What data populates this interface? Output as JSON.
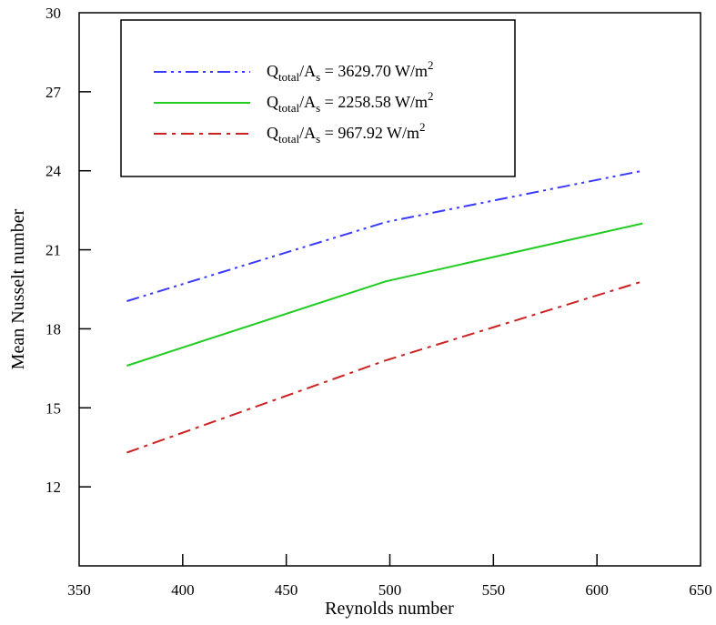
{
  "chart_data": {
    "type": "line",
    "xlabel": "Reynolds number",
    "ylabel": "Mean Nusselt number",
    "xlim": [
      350,
      650
    ],
    "ylim": [
      9,
      30
    ],
    "xticks": [
      350,
      400,
      450,
      500,
      550,
      600,
      650
    ],
    "yticks": [
      12,
      15,
      18,
      21,
      24,
      27,
      30
    ],
    "grid": false,
    "legend_position": "top-left",
    "series": [
      {
        "name": "Q_total/A_s = 3629.70 W/m^2",
        "legend": {
          "q": "Q",
          "q_sub": "total",
          "mid": "/A",
          "a_sub": "s",
          "value": " = 3629.70  W/m",
          "sup": "2"
        },
        "color": "#3a3aff",
        "dash": "dashdotdot",
        "x": [
          373,
          498,
          622
        ],
        "y": [
          19.05,
          22.05,
          24.0
        ]
      },
      {
        "name": "Q_total/A_s = 2258.58 W/m^2",
        "legend": {
          "q": "Q",
          "q_sub": "total",
          "mid": "/A",
          "a_sub": "s",
          "value": " = 2258.58  W/m",
          "sup": "2"
        },
        "color": "#22cc22",
        "dash": "solid",
        "x": [
          373,
          498,
          622
        ],
        "y": [
          16.6,
          19.8,
          22.0
        ]
      },
      {
        "name": "Q_total/A_s = 967.92 W/m^2",
        "legend": {
          "q": "Q",
          "q_sub": "total",
          "mid": "/A",
          "a_sub": "s",
          "value": " = 967.92    W/m",
          "sup": "2"
        },
        "color": "#cc2222",
        "dash": "dashdot",
        "x": [
          373,
          498,
          622
        ],
        "y": [
          13.3,
          16.8,
          19.8
        ]
      }
    ]
  }
}
